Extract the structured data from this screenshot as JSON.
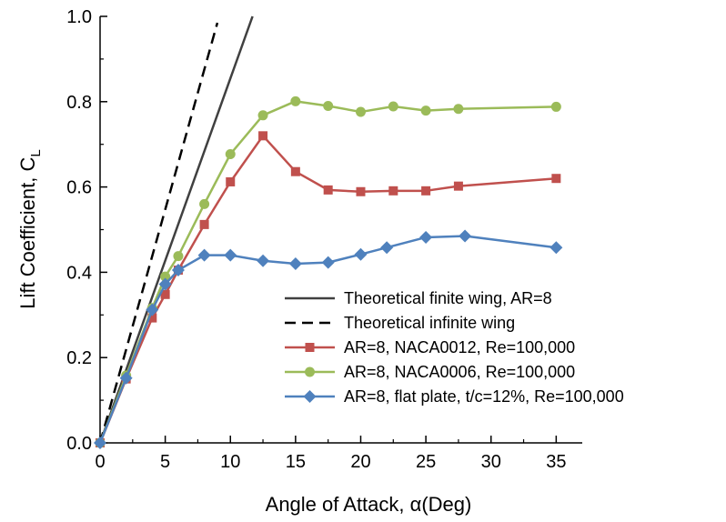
{
  "chart_data": {
    "type": "line",
    "xlabel": "Angle of Attack, α(Deg)",
    "ylabel": {
      "main": "Lift Coefficient, C",
      "sub": "L"
    },
    "xlim": [
      0,
      37
    ],
    "ylim": [
      0,
      1.0
    ],
    "x_ticks": [
      0,
      5,
      10,
      15,
      20,
      25,
      30,
      35
    ],
    "x_tick_labels": [
      "0",
      "5",
      "10",
      "15",
      "20",
      "25",
      "30",
      "35"
    ],
    "y_ticks": [
      0,
      0.2,
      0.4,
      0.6,
      0.8,
      1.0
    ],
    "y_tick_labels": [
      "0.0",
      "0.2",
      "0.4",
      "0.6",
      "0.8",
      "1.0"
    ],
    "grid": false,
    "legend_position": "bottom-right",
    "series": [
      {
        "name": "Theoretical finite wing, AR=8",
        "color": "#404040",
        "style": "solid",
        "marker": "none",
        "x": [
          0,
          11.7
        ],
        "y": [
          0,
          1.0
        ]
      },
      {
        "name": "Theoretical infinite wing",
        "color": "#000000",
        "style": "dashed",
        "marker": "none",
        "x": [
          0,
          9.0
        ],
        "y": [
          0,
          0.985
        ]
      },
      {
        "name": "AR=8, NACA0012, Re=100,000",
        "color": "#c0504d",
        "style": "solid",
        "marker": "square",
        "x": [
          0,
          2,
          4,
          5,
          6,
          8,
          10,
          12.5,
          15,
          17.5,
          20,
          22.5,
          25,
          27.5,
          35
        ],
        "y": [
          0,
          0.15,
          0.293,
          0.348,
          0.405,
          0.512,
          0.612,
          0.72,
          0.636,
          0.593,
          0.589,
          0.591,
          0.591,
          0.602,
          0.62
        ]
      },
      {
        "name": "AR=8, NACA0006, Re=100,000",
        "color": "#9bbb59",
        "style": "solid",
        "marker": "circle",
        "x": [
          0,
          2,
          4,
          5,
          6,
          8,
          10,
          12.5,
          15,
          17.5,
          20,
          22.5,
          25,
          27.5,
          35
        ],
        "y": [
          0,
          0.158,
          0.316,
          0.39,
          0.438,
          0.56,
          0.677,
          0.768,
          0.801,
          0.79,
          0.776,
          0.789,
          0.779,
          0.783,
          0.788
        ]
      },
      {
        "name": "AR=8, flat plate, t/c=12%, Re=100,000",
        "color": "#4f81bd",
        "style": "solid",
        "marker": "diamond",
        "x": [
          0,
          2,
          4,
          5,
          6,
          8,
          10,
          12.5,
          15,
          17.5,
          20,
          22,
          25,
          28,
          35
        ],
        "y": [
          0,
          0.152,
          0.312,
          0.372,
          0.405,
          0.44,
          0.44,
          0.427,
          0.42,
          0.423,
          0.442,
          0.458,
          0.482,
          0.485,
          0.458
        ]
      }
    ]
  }
}
